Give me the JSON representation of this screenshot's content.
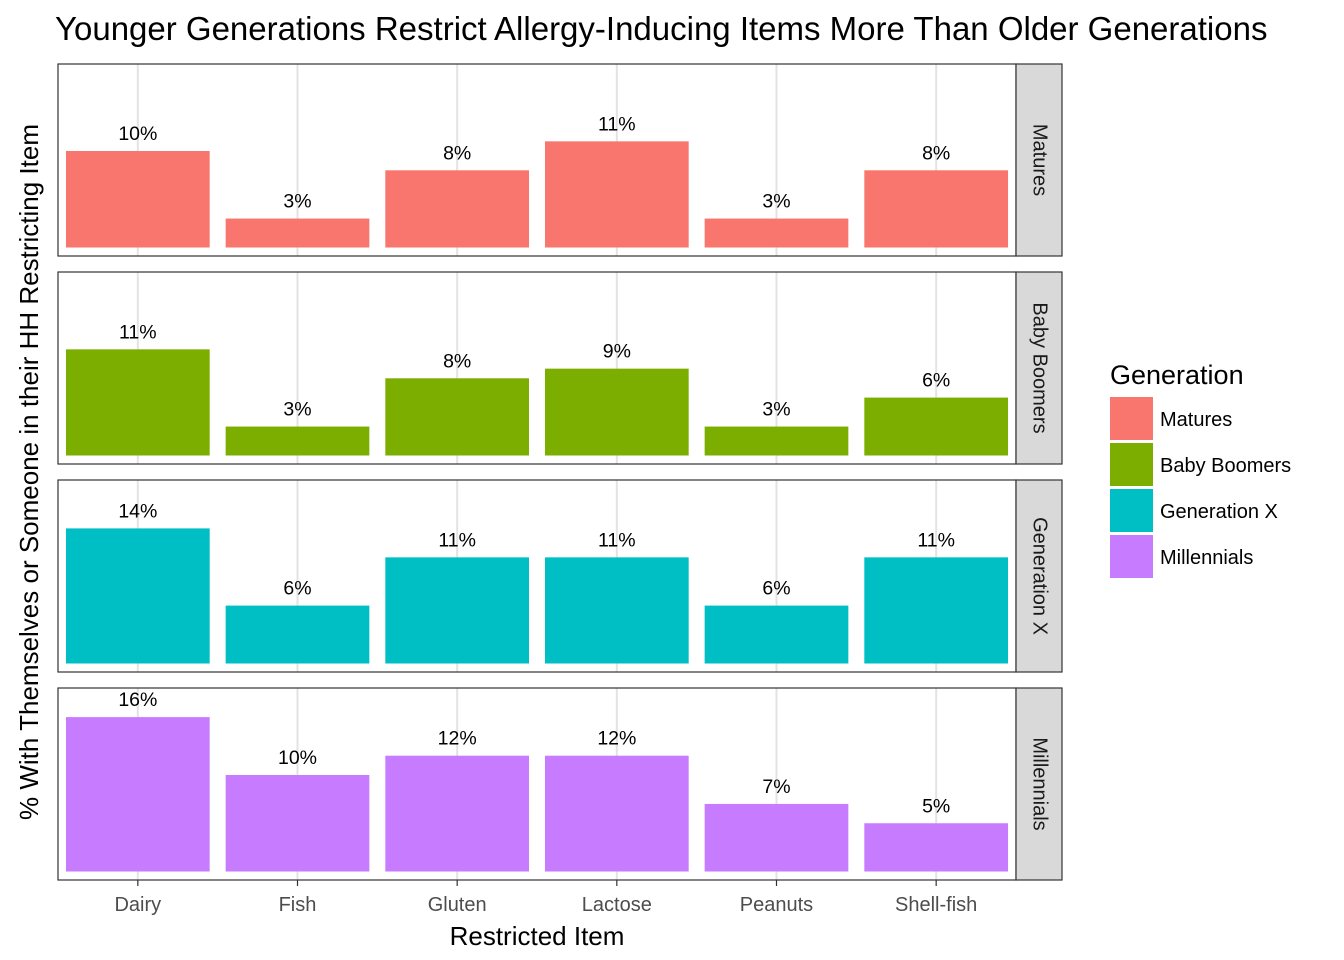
{
  "chart_data": {
    "type": "bar",
    "title": "Younger Generations Restrict Allergy-Inducing Items More Than Older Generations",
    "xlabel": "Restricted Item",
    "ylabel": "% With Themselves or Someone in their HH Restricting Item",
    "categories": [
      "Dairy",
      "Fish",
      "Gluten",
      "Lactose",
      "Peanuts",
      "Shell-fish"
    ],
    "ylim": [
      0,
      17
    ],
    "grid": true,
    "facet": "rows",
    "legend": {
      "title": "Generation",
      "position": "right"
    },
    "series": [
      {
        "name": "Matures",
        "color": "#F8766D",
        "values": [
          10,
          3,
          8,
          11,
          3,
          8
        ],
        "labels": [
          "10%",
          "3%",
          "8%",
          "11%",
          "3%",
          "8%"
        ]
      },
      {
        "name": "Baby Boomers",
        "color": "#7CAE00",
        "values": [
          11,
          3,
          8,
          9,
          3,
          6
        ],
        "labels": [
          "11%",
          "3%",
          "8%",
          "9%",
          "3%",
          "6%"
        ]
      },
      {
        "name": "Generation X",
        "color": "#00BFC4",
        "values": [
          14,
          6,
          11,
          11,
          6,
          11
        ],
        "labels": [
          "14%",
          "6%",
          "11%",
          "11%",
          "6%",
          "11%"
        ]
      },
      {
        "name": "Millennials",
        "color": "#C77CFF",
        "values": [
          16,
          10,
          12,
          12,
          7,
          5
        ],
        "labels": [
          "16%",
          "10%",
          "12%",
          "12%",
          "7%",
          "5%"
        ]
      }
    ]
  }
}
